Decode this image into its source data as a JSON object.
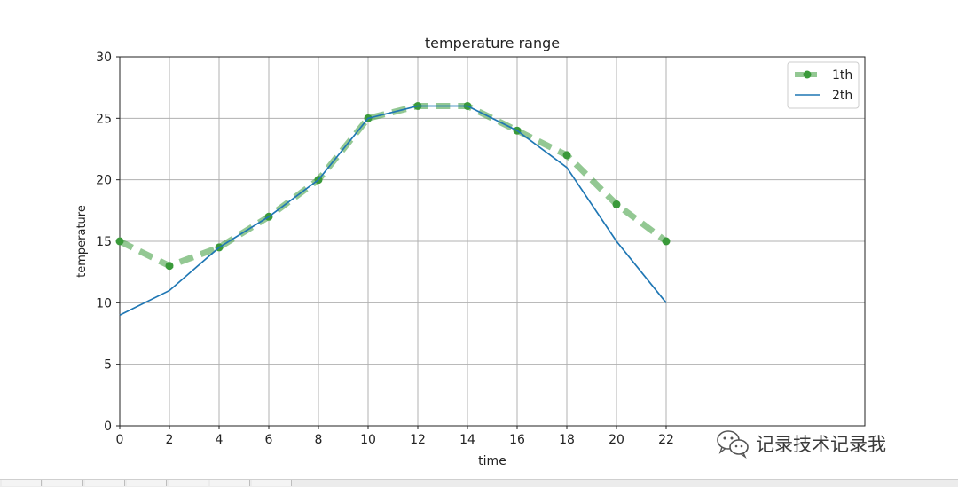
{
  "chart_data": {
    "type": "line",
    "title": "temperature range",
    "xlabel": "time",
    "ylabel": "temperature",
    "xlim": [
      0,
      30
    ],
    "ylim": [
      0,
      30
    ],
    "xticks": [
      0,
      2,
      4,
      6,
      8,
      10,
      12,
      14,
      16,
      18,
      20,
      22
    ],
    "yticks": [
      0,
      5,
      10,
      15,
      20,
      25,
      30
    ],
    "grid": true,
    "legend_position": "top-right",
    "series": [
      {
        "name": "1th",
        "style": "dashed-with-markers",
        "color": "#3a9a3a",
        "x": [
          0,
          2,
          4,
          6,
          8,
          10,
          12,
          14,
          16,
          18,
          20,
          22
        ],
        "y": [
          15,
          13,
          14.5,
          17,
          20,
          25,
          26,
          26,
          24,
          22,
          18,
          15
        ]
      },
      {
        "name": "2th",
        "style": "solid",
        "color": "#1f77b4",
        "x": [
          0,
          2,
          4,
          6,
          8,
          10,
          12,
          14,
          16,
          18,
          20,
          22
        ],
        "y": [
          9,
          11,
          14.5,
          17,
          20,
          25,
          26,
          26,
          24,
          21,
          15,
          10
        ]
      }
    ]
  },
  "watermark": {
    "text": "记录技术记录我",
    "icon": "wechat-icon"
  }
}
